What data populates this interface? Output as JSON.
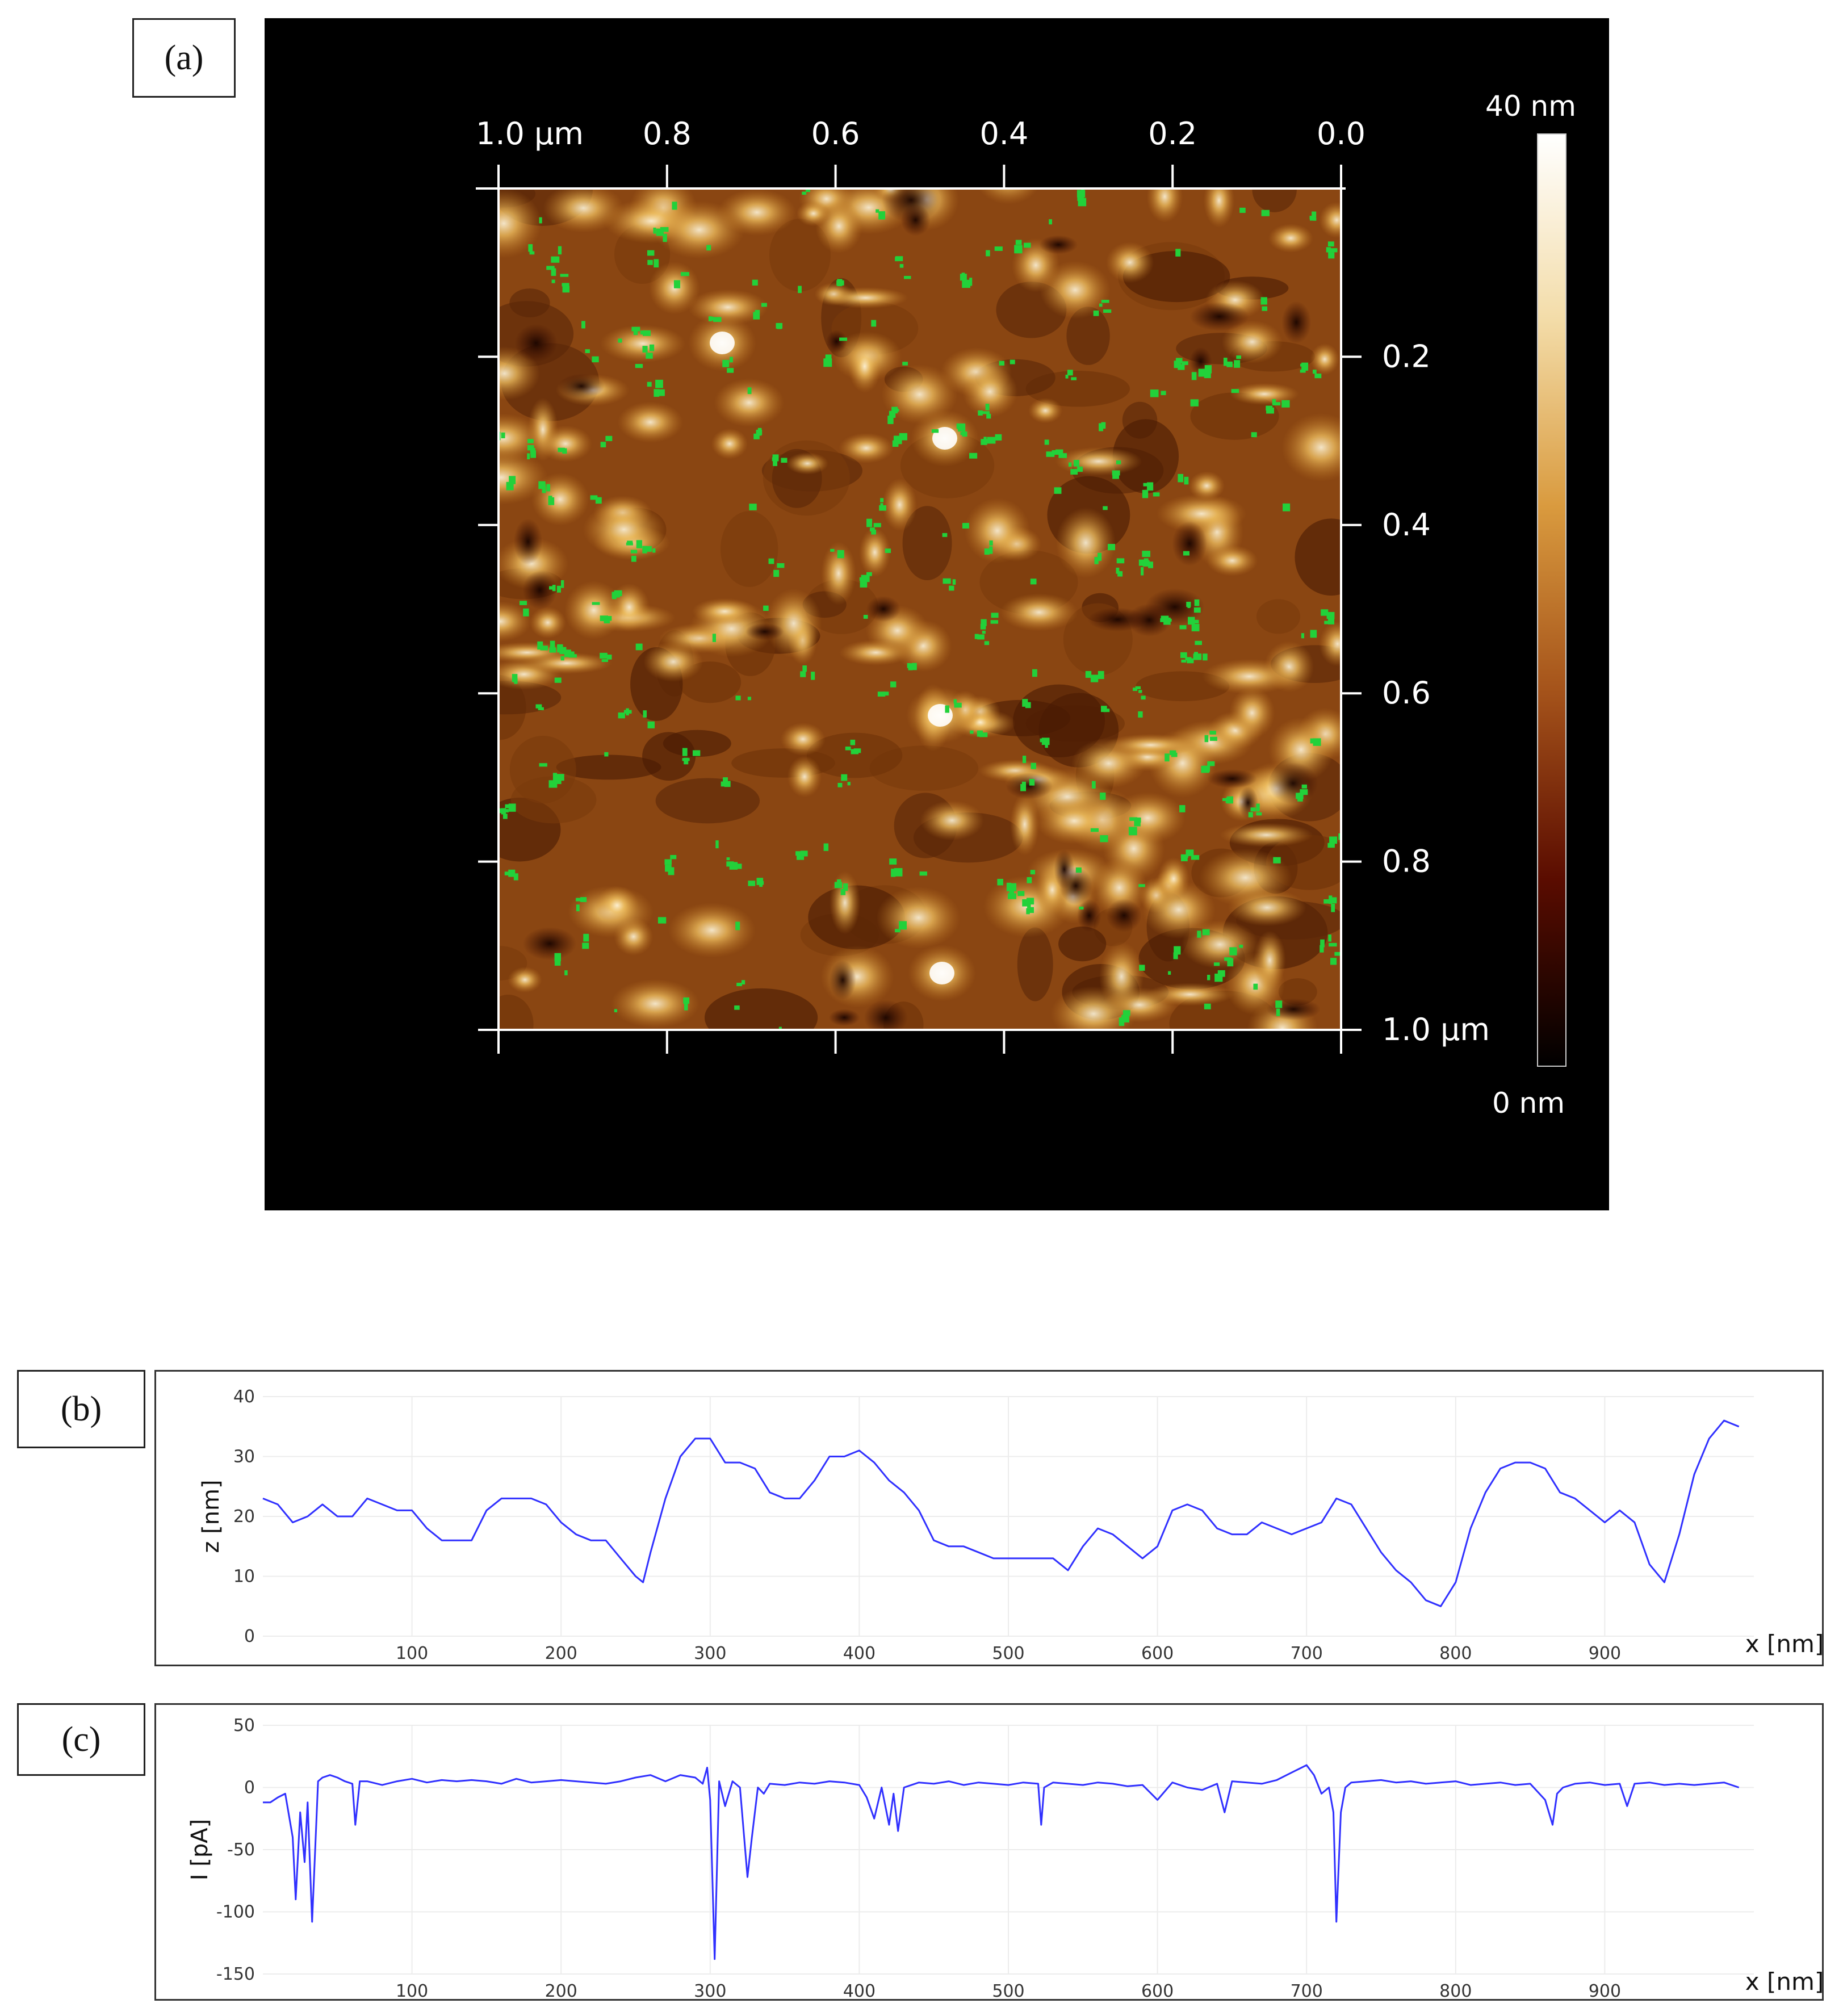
{
  "panels": {
    "a": "(a)",
    "b": "(b)",
    "c": "(c)"
  },
  "chart_data": [
    {
      "type": "heatmap",
      "panel": "(a)",
      "x_ticks": [
        "1.0 µm",
        "0.8",
        "0.6",
        "0.4",
        "0.2",
        "0.0"
      ],
      "y_ticks": [
        "0.2",
        "0.4",
        "0.6",
        "0.8",
        "1.0 µm"
      ],
      "colorbar": {
        "max_label": "40 nm",
        "min_label": "0 nm",
        "range": [
          0,
          40
        ],
        "colors": [
          "#000000",
          "#5a0c00",
          "#a4521a",
          "#d99a3e",
          "#f3dca8",
          "#ffffff"
        ]
      },
      "overlay_color": "#22d13a"
    },
    {
      "type": "line",
      "panel": "(b)",
      "ylabel": "z [nm]",
      "xlabel": "x [nm]",
      "xlim": [
        0,
        1000
      ],
      "ylim": [
        0,
        40
      ],
      "xticks": [
        100,
        200,
        300,
        400,
        500,
        600,
        700,
        800,
        900
      ],
      "yticks": [
        0,
        10,
        20,
        30,
        40
      ],
      "color": "#3030ff",
      "x": [
        0,
        10,
        20,
        30,
        40,
        50,
        60,
        70,
        80,
        90,
        100,
        110,
        120,
        130,
        140,
        150,
        160,
        170,
        180,
        190,
        200,
        210,
        220,
        230,
        240,
        250,
        255,
        260,
        270,
        280,
        290,
        300,
        310,
        320,
        330,
        340,
        350,
        360,
        370,
        380,
        390,
        400,
        410,
        420,
        430,
        440,
        450,
        460,
        470,
        480,
        490,
        500,
        510,
        520,
        530,
        540,
        550,
        560,
        570,
        580,
        590,
        600,
        610,
        620,
        630,
        640,
        650,
        660,
        670,
        680,
        690,
        700,
        710,
        720,
        730,
        740,
        750,
        760,
        770,
        780,
        790,
        800,
        810,
        820,
        830,
        840,
        850,
        860,
        870,
        880,
        890,
        900,
        910,
        920,
        930,
        940,
        950,
        960,
        970,
        980,
        990
      ],
      "y": [
        23,
        22,
        19,
        20,
        22,
        20,
        20,
        23,
        22,
        21,
        21,
        18,
        16,
        16,
        16,
        21,
        23,
        23,
        23,
        22,
        19,
        17,
        16,
        16,
        13,
        10,
        9,
        14,
        23,
        30,
        33,
        33,
        29,
        29,
        28,
        24,
        23,
        23,
        26,
        30,
        30,
        31,
        29,
        26,
        24,
        21,
        16,
        15,
        15,
        14,
        13,
        13,
        13,
        13,
        13,
        11,
        15,
        18,
        17,
        15,
        13,
        15,
        21,
        22,
        21,
        18,
        17,
        17,
        19,
        18,
        17,
        18,
        19,
        23,
        22,
        18,
        14,
        11,
        9,
        6,
        5,
        9,
        18,
        24,
        28,
        29,
        29,
        28,
        24,
        23,
        21,
        19,
        21,
        19,
        12,
        9,
        17,
        27,
        33,
        36,
        35
      ]
    },
    {
      "type": "line",
      "panel": "(c)",
      "ylabel": "I [pA]",
      "xlabel": "x [nm]",
      "xlim": [
        0,
        1000
      ],
      "ylim": [
        -150,
        50
      ],
      "xticks": [
        100,
        200,
        300,
        400,
        500,
        600,
        700,
        800,
        900
      ],
      "yticks": [
        50,
        0,
        -50,
        -100,
        -150
      ],
      "color": "#3030ff",
      "x": [
        0,
        5,
        10,
        15,
        20,
        22,
        25,
        28,
        30,
        33,
        37,
        40,
        45,
        50,
        55,
        60,
        62,
        65,
        70,
        80,
        90,
        100,
        110,
        120,
        130,
        140,
        150,
        160,
        170,
        180,
        190,
        200,
        210,
        220,
        230,
        240,
        250,
        260,
        270,
        280,
        290,
        295,
        298,
        300,
        303,
        306,
        310,
        315,
        320,
        325,
        328,
        332,
        336,
        340,
        350,
        360,
        370,
        380,
        390,
        400,
        405,
        410,
        415,
        420,
        423,
        426,
        430,
        440,
        450,
        460,
        470,
        480,
        490,
        500,
        510,
        520,
        522,
        524,
        530,
        540,
        550,
        560,
        570,
        580,
        590,
        600,
        610,
        620,
        630,
        640,
        645,
        650,
        660,
        670,
        680,
        690,
        700,
        705,
        710,
        715,
        718,
        720,
        723,
        726,
        730,
        740,
        750,
        760,
        770,
        780,
        790,
        800,
        810,
        820,
        830,
        840,
        850,
        860,
        865,
        868,
        872,
        880,
        890,
        900,
        910,
        915,
        920,
        930,
        940,
        950,
        960,
        970,
        980,
        990
      ],
      "y": [
        -12,
        -12,
        -8,
        -5,
        -40,
        -90,
        -20,
        -60,
        -12,
        -108,
        5,
        8,
        10,
        8,
        5,
        3,
        -30,
        5,
        5,
        2,
        5,
        7,
        4,
        6,
        5,
        6,
        5,
        3,
        7,
        4,
        5,
        6,
        5,
        4,
        3,
        5,
        8,
        10,
        5,
        10,
        8,
        3,
        16,
        -10,
        -138,
        5,
        -15,
        5,
        0,
        -72,
        -40,
        0,
        -5,
        3,
        2,
        4,
        3,
        5,
        4,
        2,
        -8,
        -25,
        0,
        -30,
        -5,
        -35,
        0,
        4,
        3,
        5,
        2,
        4,
        3,
        2,
        4,
        3,
        -30,
        0,
        4,
        3,
        2,
        4,
        3,
        1,
        2,
        -10,
        4,
        0,
        -2,
        3,
        -20,
        5,
        4,
        3,
        6,
        12,
        18,
        10,
        -5,
        0,
        -20,
        -108,
        -20,
        0,
        4,
        5,
        6,
        4,
        5,
        3,
        4,
        5,
        2,
        3,
        4,
        2,
        3,
        -10,
        -30,
        -5,
        0,
        3,
        4,
        2,
        3,
        -15,
        3,
        4,
        2,
        3,
        2,
        3,
        4,
        0
      ]
    }
  ]
}
